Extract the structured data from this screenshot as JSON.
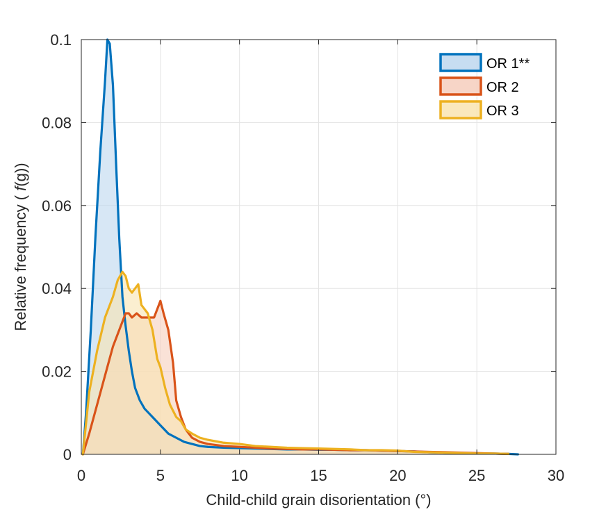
{
  "chart_data": {
    "type": "area",
    "title": "",
    "xlabel": "Child-child grain disorientation (°)",
    "ylabel_parts": [
      "Relative frequency ( ",
      "f",
      "(g))"
    ],
    "xlim": [
      0,
      30
    ],
    "ylim": [
      0,
      0.1
    ],
    "xticks": [
      0,
      5,
      10,
      15,
      20,
      25,
      30
    ],
    "xtick_labels": [
      "0",
      "5",
      "10",
      "15",
      "20",
      "25",
      "30"
    ],
    "yticks": [
      0,
      0.02,
      0.04,
      0.06,
      0.08,
      0.1
    ],
    "ytick_labels": [
      "0",
      "0.02",
      "0.04",
      "0.06",
      "0.08",
      "0.1"
    ],
    "grid": true,
    "legend_position": "top-right",
    "series": [
      {
        "name": "OR 1**",
        "color": "#0072BD",
        "fill": "#BDD7EE",
        "x": [
          0.1,
          0.3,
          0.6,
          0.9,
          1.2,
          1.5,
          1.65,
          1.8,
          2.0,
          2.2,
          2.4,
          2.6,
          2.8,
          3.0,
          3.2,
          3.4,
          3.7,
          4.0,
          4.5,
          5.0,
          5.5,
          6.0,
          6.5,
          7.0,
          7.5,
          8.0,
          9.0,
          10.0,
          11.0,
          12.0,
          13.0,
          14.0,
          15.0,
          16.0,
          17.0,
          18.0,
          19.0,
          20.0,
          21.0,
          22.0,
          23.0,
          24.0,
          25.0,
          26.0,
          27.0,
          27.6
        ],
        "values": [
          0.0,
          0.01,
          0.03,
          0.053,
          0.073,
          0.09,
          0.1,
          0.099,
          0.089,
          0.07,
          0.052,
          0.038,
          0.031,
          0.025,
          0.02,
          0.016,
          0.013,
          0.011,
          0.009,
          0.007,
          0.005,
          0.004,
          0.003,
          0.0025,
          0.002,
          0.0018,
          0.0016,
          0.0015,
          0.0014,
          0.0013,
          0.0012,
          0.0012,
          0.0011,
          0.0011,
          0.001,
          0.001,
          0.0009,
          0.0008,
          0.0007,
          0.0005,
          0.0004,
          0.0003,
          0.0002,
          0.0002,
          0.0001,
          0.0
        ]
      },
      {
        "name": "OR 2",
        "color": "#D95319",
        "fill": "#F6CEBD",
        "x": [
          0.1,
          0.5,
          1.0,
          1.5,
          2.0,
          2.5,
          2.8,
          3.0,
          3.2,
          3.5,
          3.8,
          4.0,
          4.3,
          4.6,
          4.8,
          5.0,
          5.2,
          5.5,
          5.8,
          6.0,
          6.3,
          6.6,
          7.0,
          7.5,
          8.0,
          9.0,
          10.0,
          11.0,
          12.0,
          13.0,
          14.0,
          15.0,
          16.0,
          17.0,
          18.0,
          19.0,
          20.0,
          21.0,
          22.0,
          23.0,
          24.0,
          25.0,
          26.0,
          27.0
        ],
        "values": [
          0.0,
          0.005,
          0.012,
          0.019,
          0.026,
          0.031,
          0.034,
          0.034,
          0.033,
          0.034,
          0.033,
          0.033,
          0.033,
          0.033,
          0.035,
          0.037,
          0.034,
          0.03,
          0.022,
          0.013,
          0.009,
          0.006,
          0.004,
          0.003,
          0.0025,
          0.002,
          0.0018,
          0.0016,
          0.0014,
          0.0013,
          0.0012,
          0.0012,
          0.0011,
          0.001,
          0.001,
          0.0009,
          0.0008,
          0.0007,
          0.0006,
          0.0005,
          0.0004,
          0.0003,
          0.0002,
          0.0001
        ]
      },
      {
        "name": "OR 3",
        "color": "#EDB120",
        "fill": "#F9E4B0",
        "x": [
          0.1,
          0.5,
          1.0,
          1.5,
          2.0,
          2.3,
          2.6,
          2.8,
          3.0,
          3.2,
          3.4,
          3.6,
          3.8,
          4.0,
          4.2,
          4.5,
          4.8,
          5.0,
          5.3,
          5.6,
          6.0,
          6.3,
          6.6,
          7.0,
          7.5,
          8.0,
          9.0,
          10.0,
          11.0,
          12.0,
          13.0,
          14.0,
          15.0,
          16.0,
          17.0,
          18.0,
          19.0,
          20.0,
          21.0,
          22.0,
          23.0,
          24.0,
          25.0,
          26.0,
          27.0
        ],
        "values": [
          0.0,
          0.015,
          0.025,
          0.033,
          0.038,
          0.042,
          0.044,
          0.043,
          0.04,
          0.039,
          0.04,
          0.041,
          0.036,
          0.035,
          0.034,
          0.03,
          0.023,
          0.021,
          0.016,
          0.012,
          0.009,
          0.008,
          0.006,
          0.005,
          0.004,
          0.0035,
          0.0028,
          0.0025,
          0.002,
          0.0018,
          0.0016,
          0.0015,
          0.0014,
          0.0013,
          0.0012,
          0.001,
          0.001,
          0.0009,
          0.0006,
          0.0005,
          0.0004,
          0.0003,
          0.0002,
          0.0002,
          0.0001
        ]
      }
    ]
  }
}
